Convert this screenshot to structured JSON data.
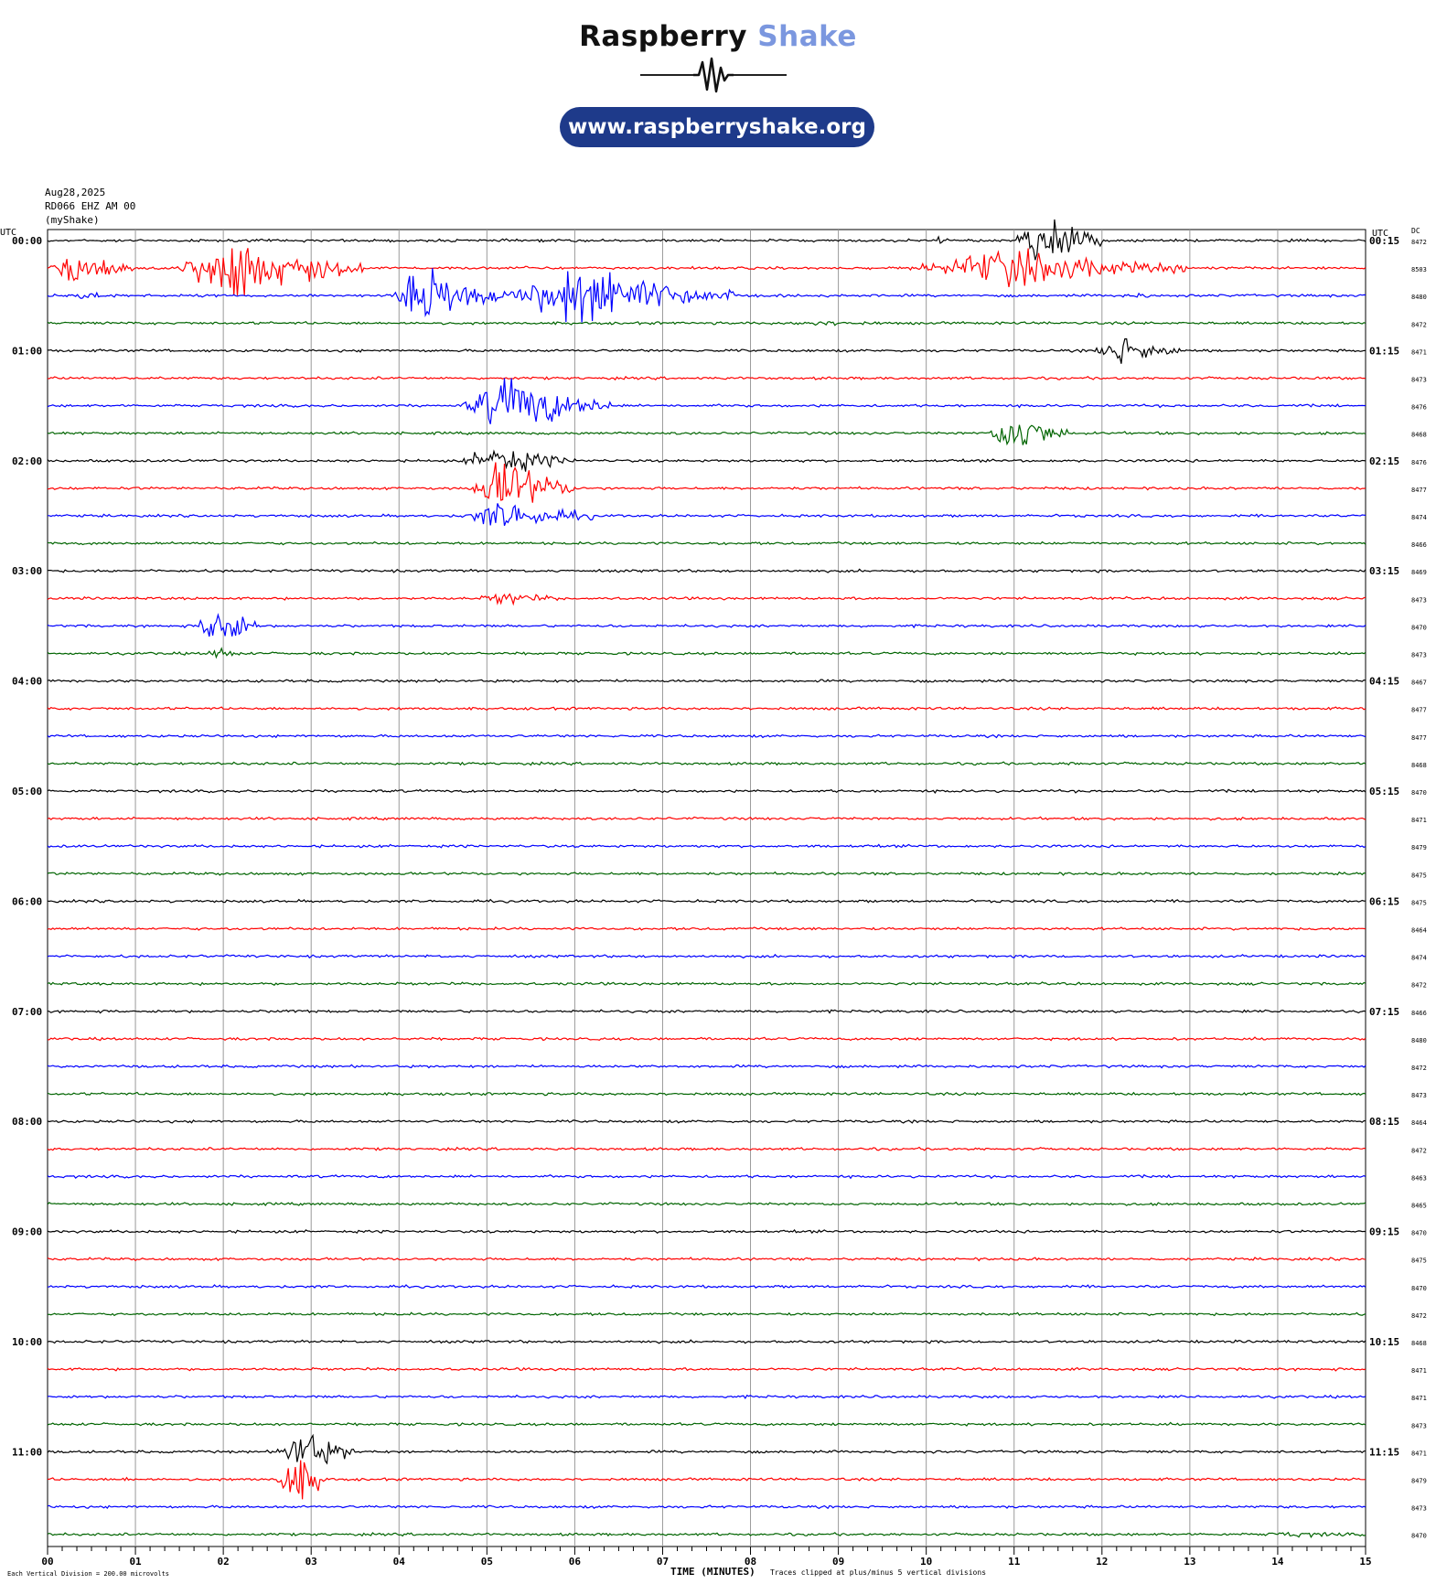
{
  "brand": {
    "name_part1": "Raspberry",
    "name_part2": "Shake",
    "url": "www.raspberryshake.org",
    "name_color": "#111111",
    "accent_color": "#7b97df",
    "pill_color": "#1e3a8a"
  },
  "header": {
    "date": "Aug28,2025",
    "station": "RD066 EHZ AM 00",
    "source": "(myShake)",
    "utc_left": "UTC",
    "utc_right": "UTC",
    "dc_label": "DC"
  },
  "footer": {
    "scale_note": "Each Vertical Division =  200.00 microvolts",
    "xlabel": "TIME (MINUTES)",
    "clip_note": "Traces clipped at plus/minus 5 vertical divisions"
  },
  "chart_data": {
    "type": "line",
    "title": "",
    "xlabel": "TIME (MINUTES)",
    "ylabel": "",
    "xlim": [
      0,
      15
    ],
    "x_ticks": [
      "00",
      "01",
      "02",
      "03",
      "04",
      "05",
      "06",
      "07",
      "08",
      "09",
      "10",
      "11",
      "12",
      "13",
      "14",
      "15"
    ],
    "row_minutes": 15,
    "series_colors": [
      "#000000",
      "#ff0000",
      "#0000ff",
      "#006400"
    ],
    "left_labels": [
      "00:00",
      "01:00",
      "02:00",
      "03:00",
      "04:00",
      "05:00",
      "06:00",
      "07:00",
      "08:00",
      "09:00",
      "10:00",
      "11:00"
    ],
    "right_labels": [
      "00:15",
      "01:15",
      "02:15",
      "03:15",
      "04:15",
      "05:15",
      "06:15",
      "07:15",
      "08:15",
      "09:15",
      "10:15",
      "11:15"
    ],
    "dc_offsets": [
      8472,
      8503,
      8480,
      8472,
      8471,
      8473,
      8476,
      8468,
      8476,
      8477,
      8474,
      8466,
      8469,
      8473,
      8470,
      8473,
      8467,
      8477,
      8477,
      8468,
      8470,
      8471,
      8479,
      8475,
      8475,
      8464,
      8474,
      8472,
      8466,
      8480,
      8472,
      8473,
      8464,
      8472,
      8463,
      8465,
      8470,
      8475,
      8470,
      8472,
      8468,
      8471,
      8471,
      8473,
      8471,
      8479,
      8473,
      8470
    ],
    "events": [
      {
        "row": 0,
        "start_min": 11.0,
        "end_min": 12.0,
        "amplitude": 5
      },
      {
        "row": 0,
        "start_min": 10.1,
        "end_min": 10.25,
        "amplitude": 0.5
      },
      {
        "row": 1,
        "start_min": 0.0,
        "end_min": 1.0,
        "amplitude": 3
      },
      {
        "row": 1,
        "start_min": 1.4,
        "end_min": 3.6,
        "amplitude": 5
      },
      {
        "row": 1,
        "start_min": 5.4,
        "end_min": 5.6,
        "amplitude": 0.6
      },
      {
        "row": 1,
        "start_min": 9.8,
        "end_min": 13.0,
        "amplitude": 3
      },
      {
        "row": 2,
        "start_min": 0.2,
        "end_min": 0.8,
        "amplitude": 0.5
      },
      {
        "row": 2,
        "start_min": 3.9,
        "end_min": 5.2,
        "amplitude": 5
      },
      {
        "row": 2,
        "start_min": 5.2,
        "end_min": 7.8,
        "amplitude": 5
      },
      {
        "row": 2,
        "start_min": 12.2,
        "end_min": 12.6,
        "amplitude": 0.4
      },
      {
        "row": 3,
        "start_min": 8.4,
        "end_min": 9.5,
        "amplitude": 0.3
      },
      {
        "row": 4,
        "start_min": 11.9,
        "end_min": 12.9,
        "amplitude": 2.5
      },
      {
        "row": 6,
        "start_min": 4.7,
        "end_min": 6.4,
        "amplitude": 5
      },
      {
        "row": 7,
        "start_min": 10.7,
        "end_min": 11.6,
        "amplitude": 4
      },
      {
        "row": 8,
        "start_min": 4.7,
        "end_min": 6.0,
        "amplitude": 2.5
      },
      {
        "row": 9,
        "start_min": 4.8,
        "end_min": 6.0,
        "amplitude": 5
      },
      {
        "row": 10,
        "start_min": 4.7,
        "end_min": 6.2,
        "amplitude": 2.5
      },
      {
        "row": 13,
        "start_min": 4.9,
        "end_min": 5.8,
        "amplitude": 1
      },
      {
        "row": 14,
        "start_min": 1.7,
        "end_min": 2.4,
        "amplitude": 5
      },
      {
        "row": 15,
        "start_min": 1.8,
        "end_min": 2.2,
        "amplitude": 1
      },
      {
        "row": 19,
        "start_min": 11.6,
        "end_min": 11.9,
        "amplitude": 0.3
      },
      {
        "row": 28,
        "start_min": 2.6,
        "end_min": 2.9,
        "amplitude": 0.4
      },
      {
        "row": 44,
        "start_min": 2.6,
        "end_min": 3.5,
        "amplitude": 4
      },
      {
        "row": 45,
        "start_min": 0.8,
        "end_min": 1.0,
        "amplitude": 0.3
      },
      {
        "row": 45,
        "start_min": 2.6,
        "end_min": 3.2,
        "amplitude": 5
      },
      {
        "row": 47,
        "start_min": 13.8,
        "end_min": 14.9,
        "amplitude": 0.3
      }
    ]
  }
}
